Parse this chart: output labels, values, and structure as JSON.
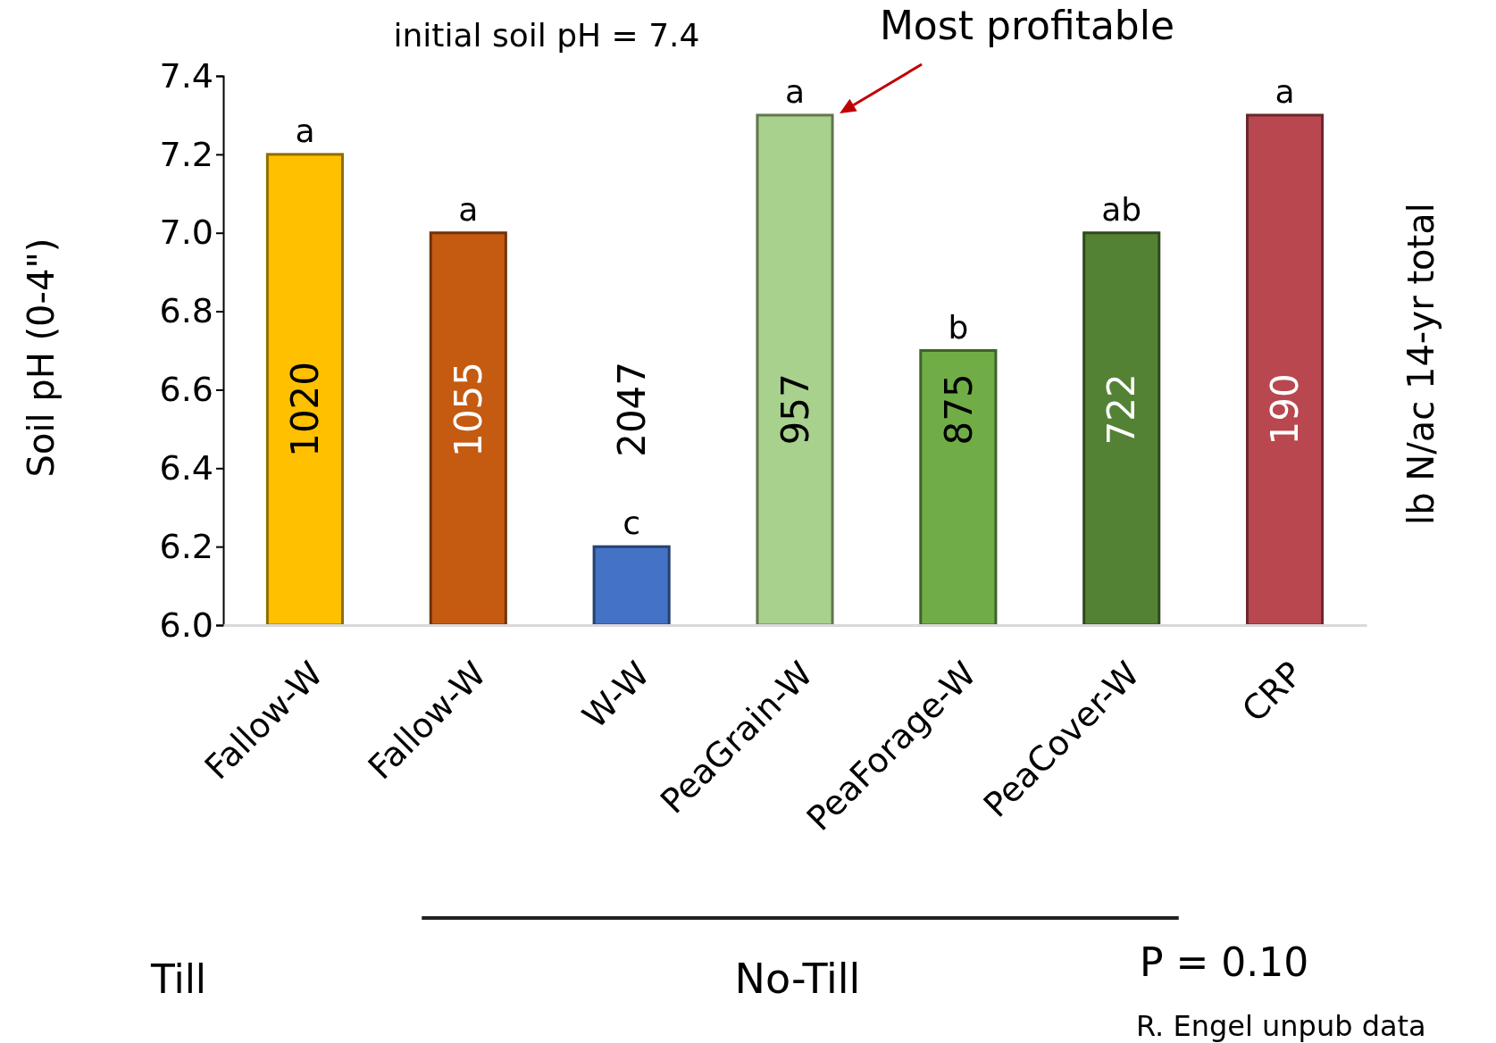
{
  "chart_data": {
    "type": "bar",
    "subtitle": "initial soil pH = 7.4",
    "ylabel": "Soil pH (0-4\")",
    "y2label": "lb N/ac 14-yr total",
    "categories": [
      "Fallow-W",
      "Fallow-W",
      "W-W",
      "PeaGrain-W",
      "PeaForage-W",
      "PeaCover-W",
      "CRP"
    ],
    "values": [
      7.2,
      7.0,
      6.2,
      7.3,
      6.7,
      7.0,
      7.3
    ],
    "colors": [
      "#ffc000",
      "#c55a11",
      "#4472c4",
      "#a9d18e",
      "#70ad47",
      "#548235",
      "#b9474f"
    ],
    "ylim": [
      6,
      7.4
    ],
    "yticks": [
      {
        "value": 6,
        "label": "6.0"
      },
      {
        "value": 6.2,
        "label": "6.2"
      },
      {
        "value": 6.4,
        "label": "6.4"
      },
      {
        "value": 6.6,
        "label": "6.6"
      },
      {
        "value": 6.8,
        "label": "6.8"
      },
      {
        "value": 7,
        "label": "7.0"
      },
      {
        "value": 7.2,
        "label": "7.2"
      },
      {
        "value": 7.4,
        "label": "7.4"
      }
    ],
    "grid": false,
    "annotations": [
      "a",
      "a",
      "c",
      "a",
      "b",
      "ab",
      "a",
      "1020",
      "1055",
      "2047",
      "957",
      "875",
      "722",
      "190",
      "Most profitable",
      "Till",
      "No-Till",
      "P = 0.10",
      "R. Engel unpub data"
    ]
  }
}
